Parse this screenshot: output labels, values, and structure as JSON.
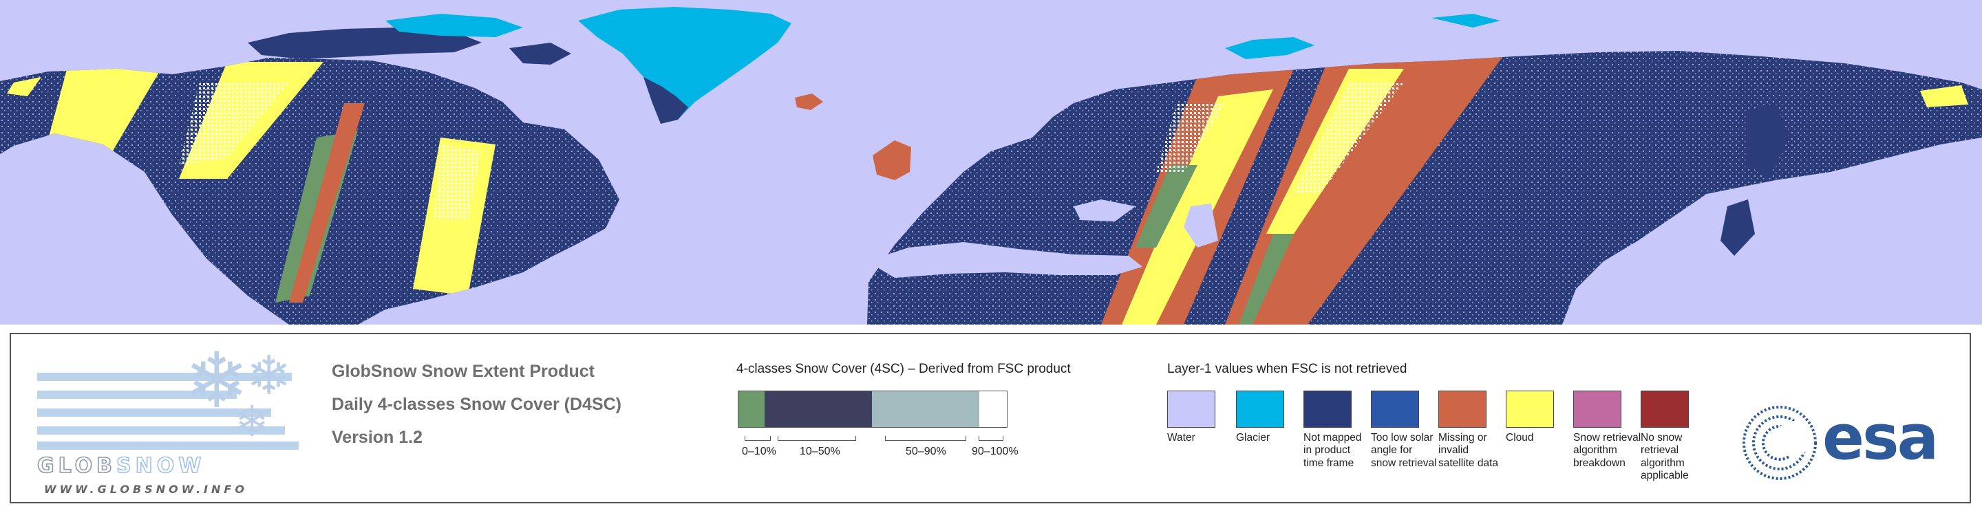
{
  "map": {
    "colors": {
      "water": "#c8c8fa",
      "glacier": "#00b4e6",
      "not_mapped": "#2a3c7a",
      "missing": "#cd6646",
      "cloud": "#ffff64",
      "snow": "#ffffff",
      "fsc_10_50": "#6e9a6a"
    }
  },
  "panel": {
    "logo": {
      "word_glob": "GLOB",
      "word_snow": "SNOW",
      "url": "WWW.GLOBSNOW.INFO",
      "icon": "snowflake-icon"
    },
    "title1": "GlobSnow Snow Extent Product",
    "title2": "Daily 4-classes Snow Cover (D4SC)",
    "title3": "Version 1.2",
    "fsc": {
      "title": "4-classes Snow Cover (4SC) – Derived from FSC product",
      "classes": [
        {
          "label": "0–10%",
          "color": "#6c9a6a"
        },
        {
          "label": "10–50%",
          "color": "#3e3e5e"
        },
        {
          "label": "50–90%",
          "color": "#a1bbbf"
        },
        {
          "label": "90–100%",
          "color": "#ffffff"
        }
      ]
    },
    "layer1": {
      "title": "Layer-1 values when FSC is not retrieved",
      "items": [
        {
          "label": "Water",
          "color": "#c8c8fa"
        },
        {
          "label": "Glacier",
          "color": "#00b4e6"
        },
        {
          "label": "Not mapped in product time frame",
          "color": "#2a3c7a"
        },
        {
          "label": "Too low solar angle for snow retrieval",
          "color": "#2b58a8"
        },
        {
          "label": "Missing or invalid satellite data",
          "color": "#cd6646"
        },
        {
          "label": "Cloud",
          "color": "#ffff64"
        },
        {
          "label": "Snow retrieval algorithm breakdown",
          "color": "#c06aa1"
        },
        {
          "label": "No snow retrieval algorithm applicable",
          "color": "#9b2f30"
        }
      ]
    },
    "esa_logo": "esa"
  }
}
